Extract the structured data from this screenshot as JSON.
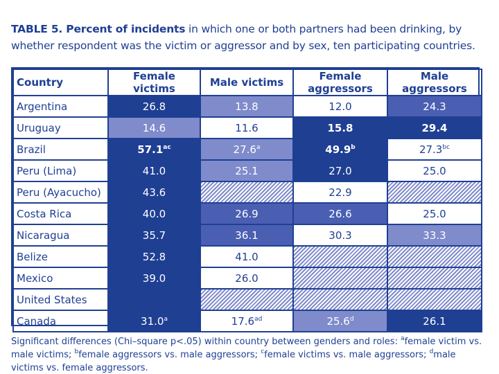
{
  "title": {
    "bold_part": "TABLE 5. Percent of incidents",
    "rest_part": " in which one or both partners had been drinking, by whether respondent was the victim or aggressor and by sex, ten participating countries."
  },
  "table": {
    "headers": [
      "Country",
      "Female victims",
      "Male victims",
      "Female aggressors",
      "Male aggressors"
    ],
    "rows": [
      {
        "country": "Argentina",
        "cells": [
          {
            "v": "26.8",
            "sup": "",
            "s": "d",
            "b": false
          },
          {
            "v": "13.8",
            "sup": "",
            "s": "l",
            "b": false
          },
          {
            "v": "12.0",
            "sup": "",
            "s": "w",
            "b": false
          },
          {
            "v": "24.3",
            "sup": "",
            "s": "m",
            "b": false
          }
        ]
      },
      {
        "country": "Uruguay",
        "cells": [
          {
            "v": "14.6",
            "sup": "",
            "s": "l",
            "b": false
          },
          {
            "v": "11.6",
            "sup": "",
            "s": "w",
            "b": false
          },
          {
            "v": "15.8",
            "sup": "",
            "s": "d",
            "b": true
          },
          {
            "v": "29.4",
            "sup": "",
            "s": "d",
            "b": true
          }
        ]
      },
      {
        "country": "Brazil",
        "cells": [
          {
            "v": "57.1",
            "sup": "ac",
            "s": "d",
            "b": true
          },
          {
            "v": "27.6",
            "sup": "a",
            "s": "l",
            "b": false
          },
          {
            "v": "49.9",
            "sup": "b",
            "s": "d",
            "b": true
          },
          {
            "v": "27.3",
            "sup": "bc",
            "s": "w",
            "b": false
          }
        ]
      },
      {
        "country": "Peru (Lima)",
        "cells": [
          {
            "v": "41.0",
            "sup": "",
            "s": "d",
            "b": false
          },
          {
            "v": "25.1",
            "sup": "",
            "s": "l",
            "b": false
          },
          {
            "v": "27.0",
            "sup": "",
            "s": "d",
            "b": false
          },
          {
            "v": "25.0",
            "sup": "",
            "s": "w",
            "b": false
          }
        ]
      },
      {
        "country": "Peru (Ayacucho)",
        "cells": [
          {
            "v": "43.6",
            "sup": "",
            "s": "d",
            "b": false
          },
          {
            "v": "",
            "sup": "",
            "s": "h",
            "b": false
          },
          {
            "v": "22.9",
            "sup": "",
            "s": "w",
            "b": false
          },
          {
            "v": "",
            "sup": "",
            "s": "h",
            "b": false
          }
        ]
      },
      {
        "country": "Costa Rica",
        "cells": [
          {
            "v": "40.0",
            "sup": "",
            "s": "d",
            "b": false
          },
          {
            "v": "26.9",
            "sup": "",
            "s": "m",
            "b": false
          },
          {
            "v": "26.6",
            "sup": "",
            "s": "m",
            "b": false
          },
          {
            "v": "25.0",
            "sup": "",
            "s": "w",
            "b": false
          }
        ]
      },
      {
        "country": "Nicaragua",
        "cells": [
          {
            "v": "35.7",
            "sup": "",
            "s": "d",
            "b": false
          },
          {
            "v": "36.1",
            "sup": "",
            "s": "m",
            "b": false
          },
          {
            "v": "30.3",
            "sup": "",
            "s": "w",
            "b": false
          },
          {
            "v": "33.3",
            "sup": "",
            "s": "l",
            "b": false
          }
        ]
      },
      {
        "country": "Belize",
        "cells": [
          {
            "v": "52.8",
            "sup": "",
            "s": "d",
            "b": false
          },
          {
            "v": "41.0",
            "sup": "",
            "s": "w",
            "b": false
          },
          {
            "v": "",
            "sup": "",
            "s": "h",
            "b": false
          },
          {
            "v": "",
            "sup": "",
            "s": "h",
            "b": false
          }
        ]
      },
      {
        "country": "Mexico",
        "cells": [
          {
            "v": "39.0",
            "sup": "",
            "s": "d",
            "b": false
          },
          {
            "v": "26.0",
            "sup": "",
            "s": "w",
            "b": false
          },
          {
            "v": "",
            "sup": "",
            "s": "h",
            "b": false
          },
          {
            "v": "",
            "sup": "",
            "s": "h",
            "b": false
          }
        ]
      },
      {
        "country": "United States",
        "cells": [
          {
            "v": "",
            "sup": "",
            "s": "d",
            "b": false
          },
          {
            "v": "",
            "sup": "",
            "s": "h",
            "b": false
          },
          {
            "v": "",
            "sup": "",
            "s": "h",
            "b": false
          },
          {
            "v": "",
            "sup": "",
            "s": "h",
            "b": false
          }
        ]
      },
      {
        "country": "Canada",
        "cells": [
          {
            "v": "31.0",
            "sup": "a",
            "s": "d",
            "b": false
          },
          {
            "v": "17.6",
            "sup": "ad",
            "s": "w",
            "b": false
          },
          {
            "v": "25.6",
            "sup": "d",
            "s": "l",
            "b": false
          },
          {
            "v": "26.1",
            "sup": "",
            "s": "d",
            "b": false
          }
        ]
      }
    ]
  },
  "footnote": {
    "intro": "Significant differences (Chi–square p<.05) within country between genders and roles: ",
    "items": [
      {
        "mark": "a",
        "text": "female victim vs. male victims; "
      },
      {
        "mark": "b",
        "text": "female aggressors vs. male aggressors; "
      },
      {
        "mark": "c",
        "text": "female victims vs. male aggressors; "
      },
      {
        "mark": "d",
        "text": "male victims vs. female aggressors."
      }
    ]
  },
  "colors": {
    "ink": "#1f3f93",
    "dark_fill": "#1f3f93",
    "medium_fill": "#4a5fb2",
    "light_fill": "#7f8bcb"
  }
}
